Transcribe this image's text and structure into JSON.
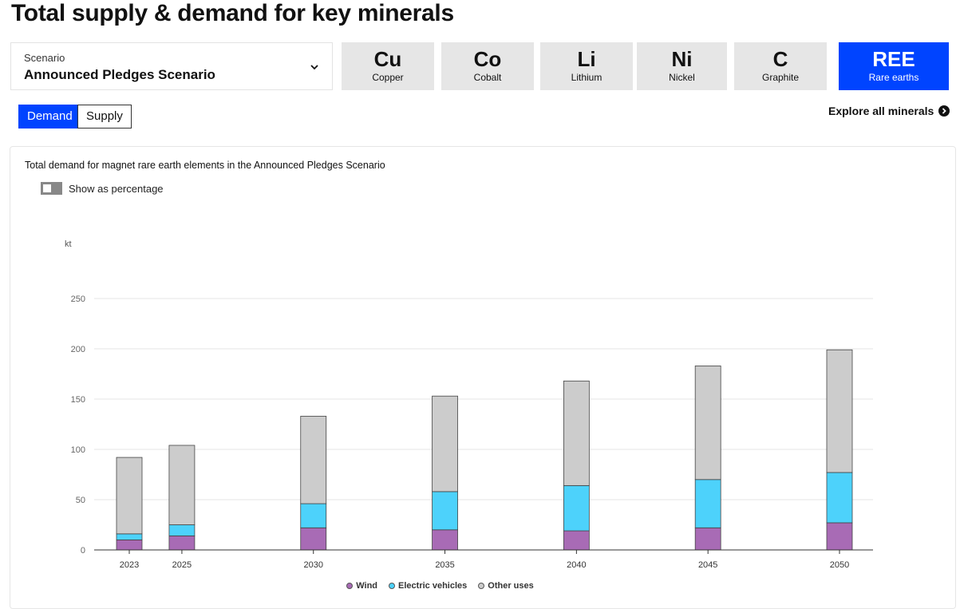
{
  "page": {
    "title": "Total supply & demand for key minerals"
  },
  "scenario": {
    "label": "Scenario",
    "value": "Announced Pledges Scenario"
  },
  "minerals": [
    {
      "symbol": "Cu",
      "name": "Copper",
      "active": false
    },
    {
      "symbol": "Co",
      "name": "Cobalt",
      "active": false
    },
    {
      "symbol": "Li",
      "name": "Lithium",
      "active": false
    },
    {
      "symbol": "Ni",
      "name": "Nickel",
      "active": false
    },
    {
      "symbol": "C",
      "name": "Graphite",
      "active": false
    },
    {
      "symbol": "REE",
      "name": "Rare earths",
      "active": true
    }
  ],
  "mode_toggle": {
    "demand": "Demand",
    "supply": "Supply",
    "selected": "Demand"
  },
  "explore": {
    "label": "Explore all minerals"
  },
  "chart_header": {
    "title": "Total demand for magnet rare earth elements in the Announced Pledges Scenario",
    "percentage_toggle_label": "Show as percentage",
    "percentage_on": false
  },
  "colors": {
    "accent": "#0044ff",
    "wind": "#a86bb5",
    "ev": "#4dd2fb",
    "other": "#cccccc"
  },
  "chart_data": {
    "type": "bar",
    "stacked": true,
    "ylabel": "kt",
    "ylim": [
      0,
      250
    ],
    "yticks": [
      0,
      50,
      100,
      150,
      200,
      250
    ],
    "categories": [
      "2023",
      "2025",
      "2030",
      "2035",
      "2040",
      "2045",
      "2050"
    ],
    "series": [
      {
        "name": "Wind",
        "values": [
          10,
          14,
          22,
          20,
          19,
          22,
          27
        ]
      },
      {
        "name": "Electric vehicles",
        "values": [
          6,
          11,
          24,
          38,
          45,
          48,
          50
        ]
      },
      {
        "name": "Other uses",
        "values": [
          76,
          79,
          87,
          95,
          104,
          113,
          122
        ]
      }
    ],
    "grid": true,
    "legend_position": "bottom"
  }
}
